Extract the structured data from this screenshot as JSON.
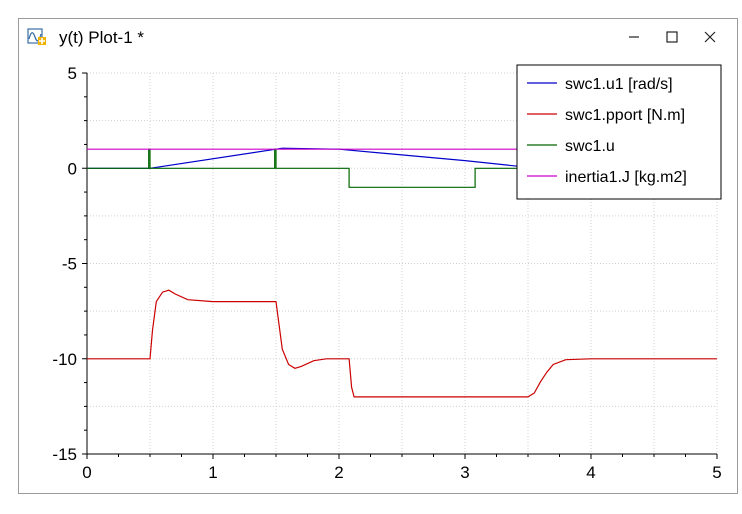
{
  "window": {
    "title": "y(t) Plot-1 *",
    "icons": {
      "app": "plot-icon",
      "minimize": "minimize-icon",
      "maximize": "maximize-icon",
      "close": "close-icon"
    },
    "controls": {
      "minimize": "—",
      "maximize": "☐",
      "close": "✕"
    }
  },
  "chart_data": {
    "type": "line",
    "title": "",
    "xlabel": "",
    "ylabel": "",
    "xlim": [
      0,
      5
    ],
    "ylim": [
      -15,
      5
    ],
    "xticks": [
      0,
      1,
      2,
      3,
      4,
      5
    ],
    "yticks": [
      5,
      0,
      -5,
      -10,
      -15
    ],
    "grid": true,
    "legend_position": "top-right",
    "series": [
      {
        "name": "swc1.u1 [rad/s]",
        "color": "#0000cc",
        "x": [
          0,
          0.5,
          1.5,
          1.55,
          2.0,
          3.0,
          3.5
        ],
        "y": [
          0,
          0,
          1.0,
          1.05,
          1.0,
          0.4,
          0.05
        ]
      },
      {
        "name": "swc1.pport [N.m]",
        "color": "#cc0000",
        "x": [
          0,
          0.5,
          0.52,
          0.55,
          0.6,
          0.65,
          0.7,
          0.8,
          1.0,
          1.5,
          1.52,
          1.55,
          1.6,
          1.65,
          1.7,
          1.8,
          1.9,
          2.0,
          2.08,
          2.1,
          2.12,
          3.5,
          3.55,
          3.6,
          3.65,
          3.7,
          3.8,
          4.0,
          5.0
        ],
        "y": [
          -10,
          -10,
          -8.5,
          -7.0,
          -6.5,
          -6.4,
          -6.6,
          -6.9,
          -7.0,
          -7.0,
          -8.0,
          -9.5,
          -10.3,
          -10.5,
          -10.4,
          -10.1,
          -10.0,
          -10.0,
          -10.0,
          -11.5,
          -12.0,
          -12.0,
          -11.8,
          -11.2,
          -10.7,
          -10.3,
          -10.05,
          -10.0,
          -10.0
        ]
      },
      {
        "name": "swc1.u",
        "color": "#006600",
        "x": [
          0,
          0.49,
          0.49,
          0.5,
          0.5,
          1.49,
          1.49,
          1.5,
          1.5,
          2.08,
          2.08,
          3.08,
          3.08,
          3.5
        ],
        "y": [
          0,
          0,
          1,
          1,
          0,
          0,
          1,
          1,
          0,
          0,
          -1,
          -1,
          0,
          0
        ]
      },
      {
        "name": "inertia1.J [kg.m2]",
        "color": "#cc00cc",
        "x": [
          0,
          5
        ],
        "y": [
          1,
          1
        ]
      }
    ]
  }
}
